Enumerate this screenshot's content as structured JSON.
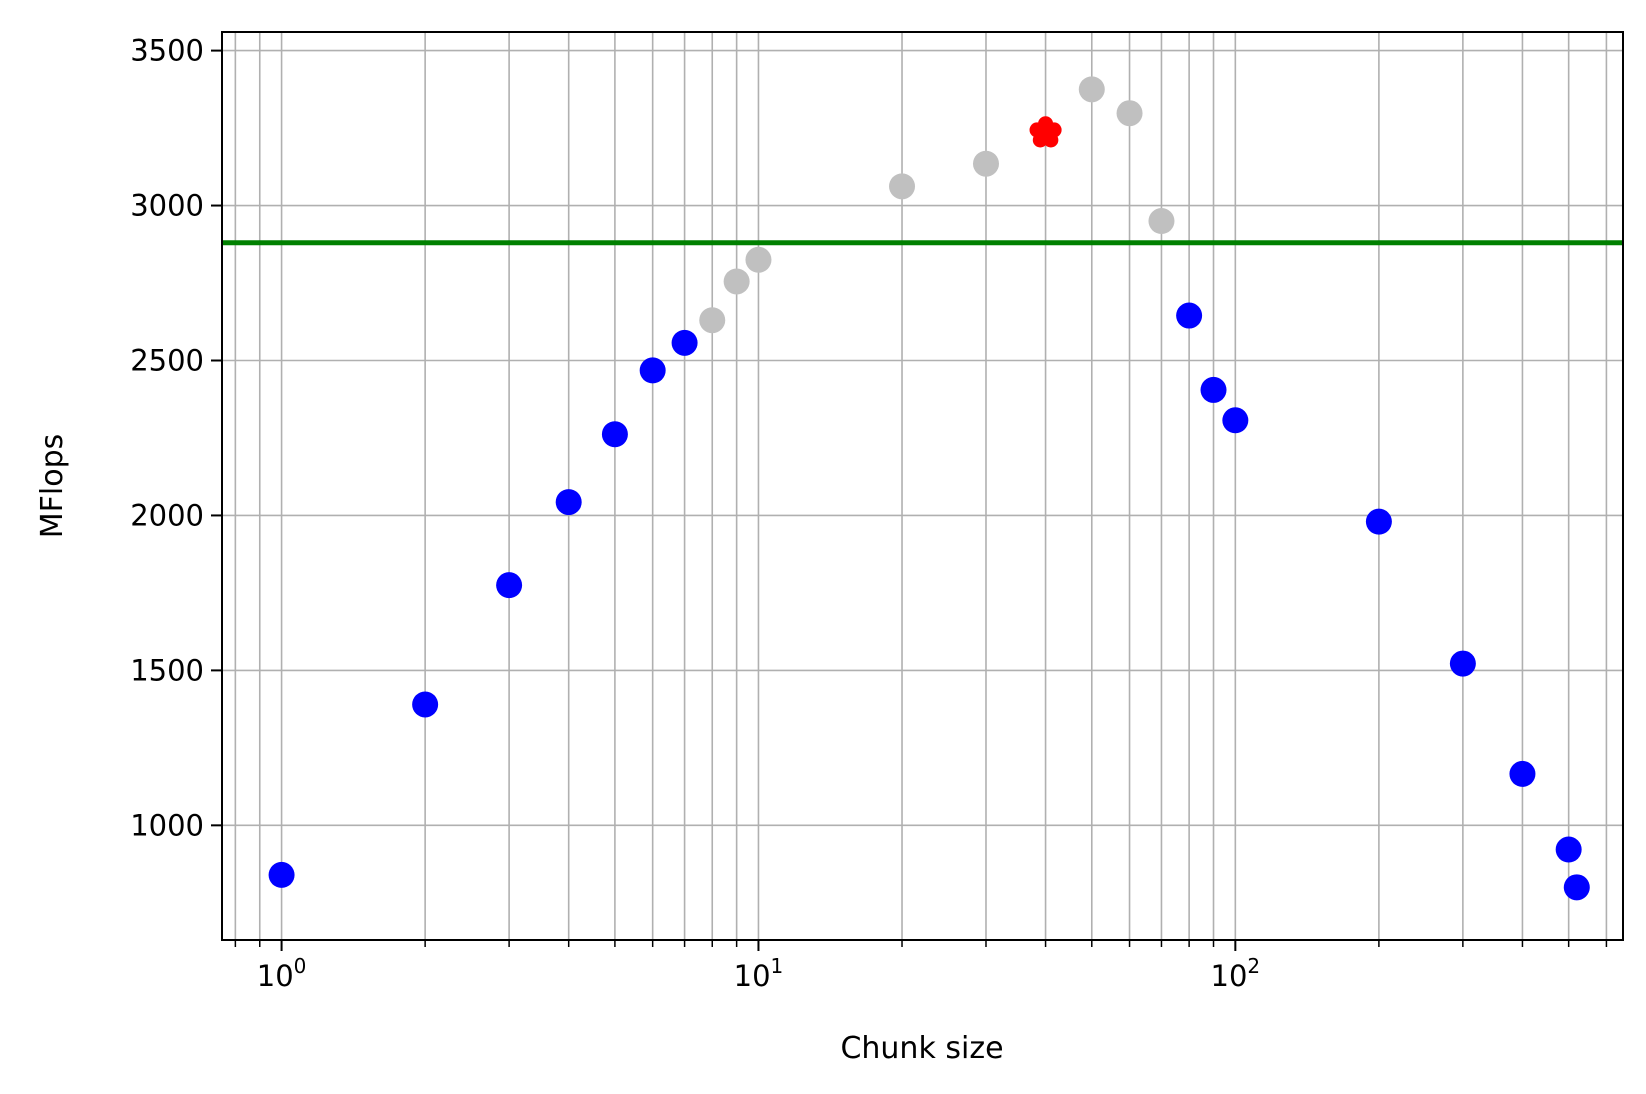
{
  "chart_data": {
    "type": "scatter",
    "title": "",
    "xlabel": "Chunk size",
    "ylabel": "MFlops",
    "xscale": "log",
    "xlim": [
      0.75,
      650
    ],
    "ylim": [
      630,
      3560
    ],
    "grid": {
      "major": true,
      "minor_x": true
    },
    "yticks": [
      1000,
      1500,
      2000,
      2500,
      3000,
      3500
    ],
    "xticks": [
      {
        "value": 1,
        "base": "10",
        "exp": "0"
      },
      {
        "value": 10,
        "base": "10",
        "exp": "1"
      },
      {
        "value": 100,
        "base": "10",
        "exp": "2"
      }
    ],
    "reference_line": {
      "y": 2880,
      "color": "#008000"
    },
    "series": [
      {
        "color": "#0000ff",
        "marker": "circle",
        "points": [
          {
            "x": 1,
            "y": 840
          },
          {
            "x": 2,
            "y": 1390
          },
          {
            "x": 3,
            "y": 1775
          },
          {
            "x": 4,
            "y": 2043
          },
          {
            "x": 5,
            "y": 2262
          },
          {
            "x": 6,
            "y": 2468
          },
          {
            "x": 7,
            "y": 2557
          },
          {
            "x": 80,
            "y": 2645
          },
          {
            "x": 90,
            "y": 2405
          },
          {
            "x": 100,
            "y": 2307
          },
          {
            "x": 200,
            "y": 1980
          },
          {
            "x": 300,
            "y": 1522
          },
          {
            "x": 400,
            "y": 1166
          },
          {
            "x": 500,
            "y": 922
          },
          {
            "x": 520,
            "y": 800
          }
        ]
      },
      {
        "color": "#c0c0c0",
        "marker": "circle",
        "points": [
          {
            "x": 8,
            "y": 2630
          },
          {
            "x": 9,
            "y": 2755
          },
          {
            "x": 10,
            "y": 2825
          },
          {
            "x": 20,
            "y": 3062
          },
          {
            "x": 30,
            "y": 3135
          },
          {
            "x": 50,
            "y": 3375
          },
          {
            "x": 60,
            "y": 3298
          },
          {
            "x": 70,
            "y": 2950
          }
        ]
      },
      {
        "color": "#ff0000",
        "marker": "flower",
        "points": [
          {
            "x": 40,
            "y": 3235
          }
        ]
      }
    ]
  }
}
